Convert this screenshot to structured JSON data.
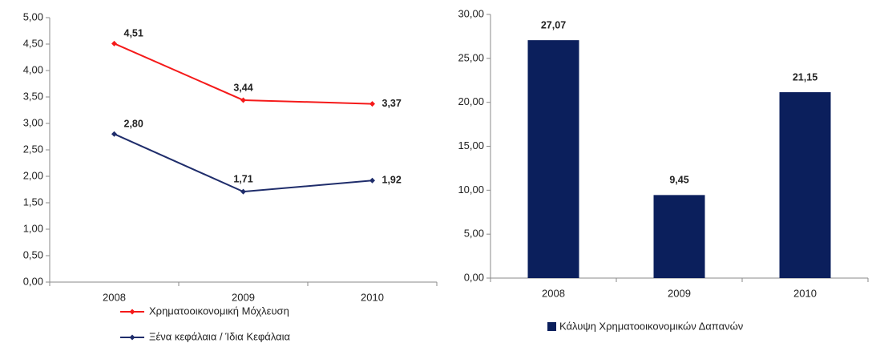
{
  "chart_data": [
    {
      "type": "line",
      "categories": [
        "2008",
        "2009",
        "2010"
      ],
      "series": [
        {
          "name": "Χρηματοοικονομική  Μόχλευση",
          "color": "#f51a1a",
          "values": [
            4.51,
            3.44,
            3.37
          ],
          "value_labels": [
            "4,51",
            "3,44",
            "3,37"
          ]
        },
        {
          "name": "Ξένα κεφάλαια / Ίδια Κεφάλαια",
          "color": "#1f2d6b",
          "values": [
            2.8,
            1.71,
            1.92
          ],
          "value_labels": [
            "2,80",
            "1,71",
            "1,92"
          ]
        }
      ],
      "ylim": [
        0,
        5
      ],
      "yticks": [
        {
          "value": 0,
          "label": "0,00"
        },
        {
          "value": 0.5,
          "label": "0,50"
        },
        {
          "value": 1,
          "label": "1,00"
        },
        {
          "value": 1.5,
          "label": "1,50"
        },
        {
          "value": 2,
          "label": "2,00"
        },
        {
          "value": 2.5,
          "label": "2,50"
        },
        {
          "value": 3,
          "label": "3,00"
        },
        {
          "value": 3.5,
          "label": "3,50"
        },
        {
          "value": 4,
          "label": "4,00"
        },
        {
          "value": 4.5,
          "label": "4,50"
        },
        {
          "value": 5,
          "label": "5,00"
        }
      ],
      "grid": false
    },
    {
      "type": "bar",
      "categories": [
        "2008",
        "2009",
        "2010"
      ],
      "series": [
        {
          "name": "Κάλυψη Χρηματοοικονομικών  Δαπανών",
          "color": "#0b1f5c",
          "values": [
            27.07,
            9.45,
            21.15
          ],
          "value_labels": [
            "27,07",
            "9,45",
            "21,15"
          ]
        }
      ],
      "ylim": [
        0,
        30
      ],
      "yticks": [
        {
          "value": 0,
          "label": "0,00"
        },
        {
          "value": 5,
          "label": "5,00"
        },
        {
          "value": 10,
          "label": "10,00"
        },
        {
          "value": 15,
          "label": "15,00"
        },
        {
          "value": 20,
          "label": "20,00"
        },
        {
          "value": 25,
          "label": "25,00"
        },
        {
          "value": 30,
          "label": "30,00"
        }
      ],
      "grid": false
    }
  ]
}
